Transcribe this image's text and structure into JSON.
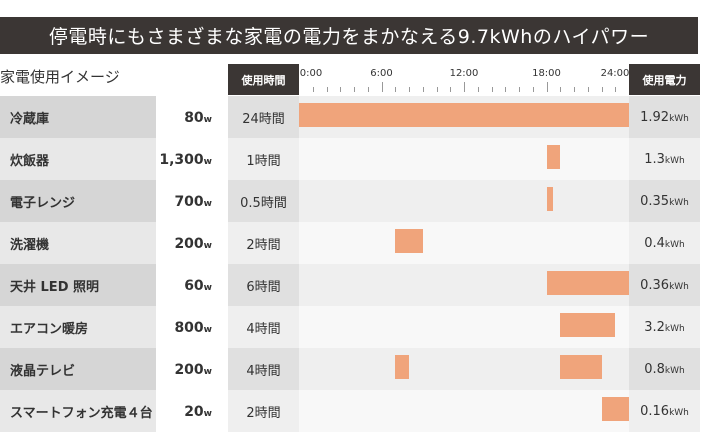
{
  "title": "停電時にもさまざまな家電の電力をまかなえる9.7kWhのハイパワー",
  "subtitle": "家電使用イメージ",
  "headers": {
    "time": "使用時間",
    "energy": "使用電力"
  },
  "chart_data": {
    "type": "gantt",
    "x_ticks": [
      "0:00",
      "6:00",
      "12:00",
      "18:00",
      "24:00"
    ],
    "xlim": [
      0,
      24
    ],
    "rows": [
      {
        "name": "冷蔵庫",
        "watt": "80",
        "watt_unit": "w",
        "time": "24時間",
        "energy": "1.92",
        "energy_unit": "kWh",
        "intervals": [
          [
            0,
            24
          ]
        ]
      },
      {
        "name": "炊飯器",
        "watt": "1,300",
        "watt_unit": "w",
        "time": "1時間",
        "energy": "1.3",
        "energy_unit": "kWh",
        "intervals": [
          [
            18,
            19
          ]
        ]
      },
      {
        "name": "電子レンジ",
        "watt": "700",
        "watt_unit": "w",
        "time": "0.5時間",
        "energy": "0.35",
        "energy_unit": "kWh",
        "intervals": [
          [
            18,
            18.5
          ]
        ]
      },
      {
        "name": "洗濯機",
        "watt": "200",
        "watt_unit": "w",
        "time": "2時間",
        "energy": "0.4",
        "energy_unit": "kWh",
        "intervals": [
          [
            7,
            9
          ]
        ]
      },
      {
        "name": "天井 LED 照明",
        "watt": "60",
        "watt_unit": "w",
        "time": "6時間",
        "energy": "0.36",
        "energy_unit": "kWh",
        "intervals": [
          [
            18,
            24
          ]
        ]
      },
      {
        "name": "エアコン暖房",
        "watt": "800",
        "watt_unit": "w",
        "time": "4時間",
        "energy": "3.2",
        "energy_unit": "kWh",
        "intervals": [
          [
            19,
            23
          ]
        ]
      },
      {
        "name": "液晶テレビ",
        "watt": "200",
        "watt_unit": "w",
        "time": "4時間",
        "energy": "0.8",
        "energy_unit": "kWh",
        "intervals": [
          [
            7,
            8
          ],
          [
            19,
            22
          ]
        ]
      },
      {
        "name": "スマートフォン充電４台",
        "watt": "20",
        "watt_unit": "w",
        "time": "2時間",
        "energy": "0.16",
        "energy_unit": "kWh",
        "intervals": [
          [
            22,
            24
          ]
        ]
      }
    ],
    "bar_color": "#f0a47b"
  }
}
